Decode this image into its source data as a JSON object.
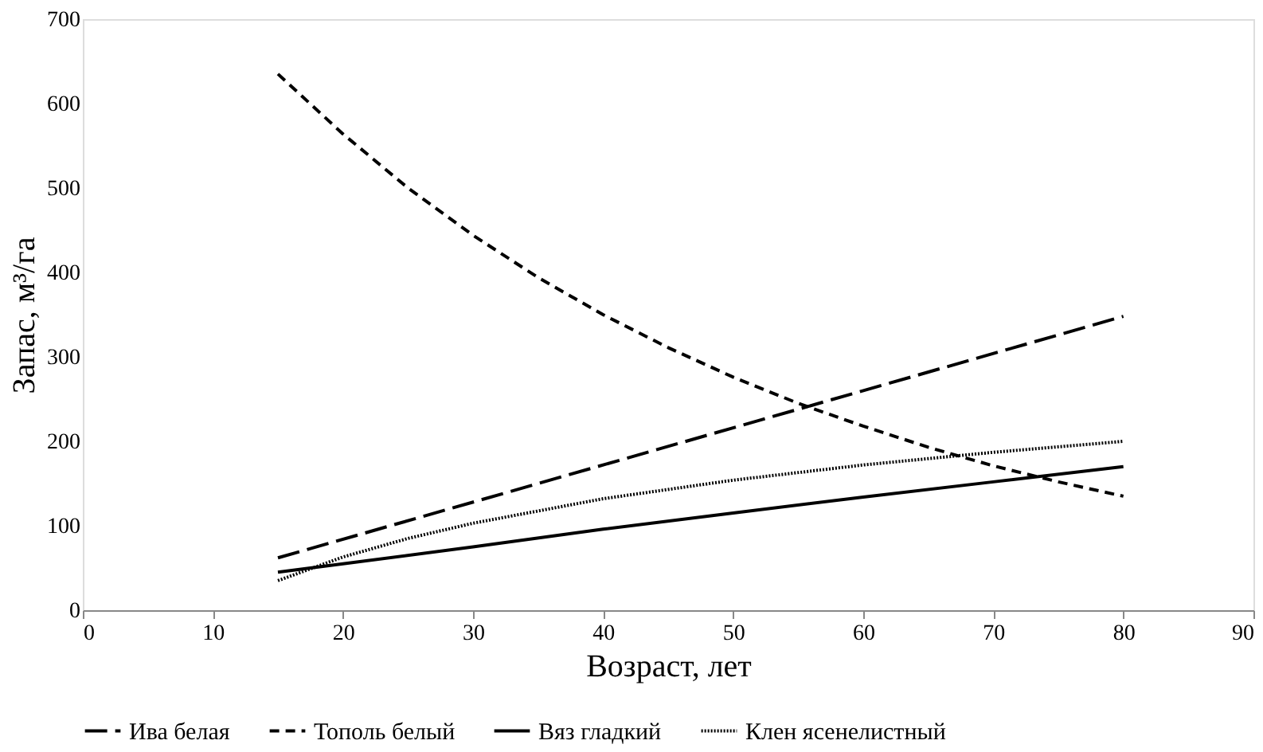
{
  "chart_data": {
    "type": "line",
    "xlabel": "Возраст, лет",
    "ylabel": "Запас, м³/га",
    "xlim": [
      0,
      90
    ],
    "xticks": [
      0,
      10,
      20,
      30,
      40,
      50,
      60,
      70,
      80,
      90
    ],
    "ylim": [
      0,
      700
    ],
    "yticks": [
      0,
      100,
      200,
      300,
      400,
      500,
      600,
      700
    ],
    "grid": false,
    "legend": "bottom",
    "marker": "none",
    "series": [
      {
        "name": "Ива белая",
        "color": "#000000",
        "line_style": "dashed",
        "x": [
          15,
          80
        ],
        "values": [
          62,
          348
        ]
      },
      {
        "name": "Тополь белый",
        "color": "#000000",
        "line_style": "dashed",
        "x": [
          15,
          20,
          25,
          30,
          35,
          40,
          45,
          50,
          55,
          60,
          65,
          70,
          75,
          80
        ],
        "values": [
          635,
          564,
          500,
          444,
          394,
          350,
          311,
          276,
          245,
          218,
          193,
          171,
          152,
          135
        ]
      },
      {
        "name": "Вяз гладкий",
        "color": "#000000",
        "line_style": "solid",
        "x": [
          15,
          20,
          30,
          40,
          50,
          60,
          70,
          80
        ],
        "values": [
          45,
          55,
          75,
          96,
          115,
          134,
          152,
          170
        ]
      },
      {
        "name": "Клен ясенелистный",
        "color": "#000000",
        "line_style": "dotted",
        "x": [
          15,
          20,
          25,
          30,
          40,
          50,
          60,
          70,
          80
        ],
        "values": [
          35,
          63,
          85,
          103,
          132,
          154,
          172,
          187,
          200
        ]
      }
    ]
  }
}
